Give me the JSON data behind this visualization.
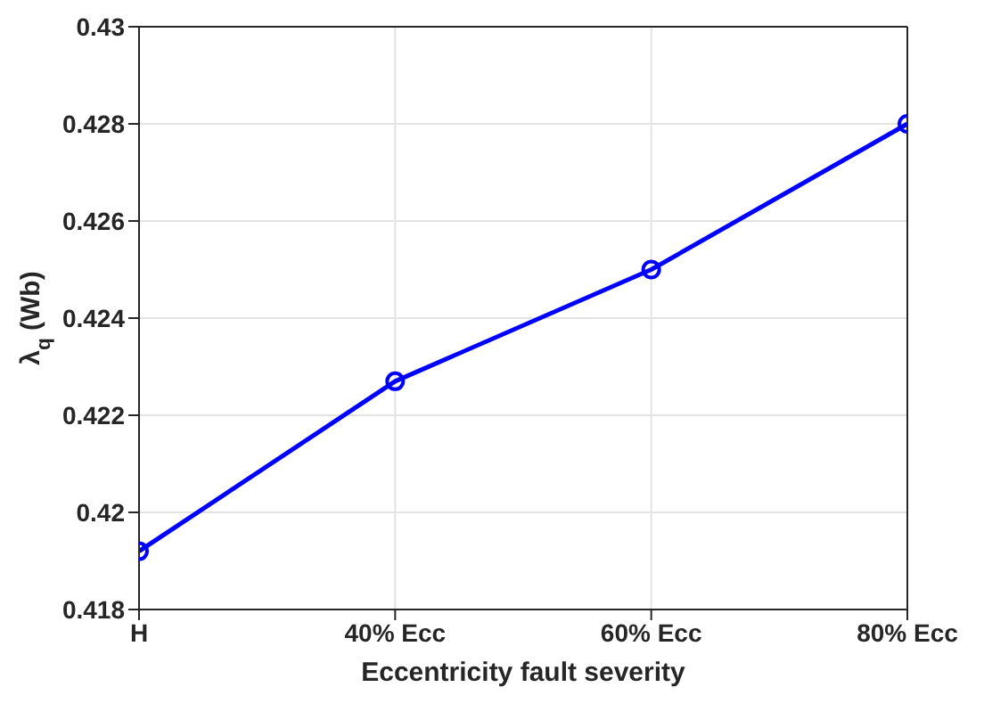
{
  "chart_data": {
    "type": "line",
    "xlabel": "Eccentricity fault severity",
    "ylabel": "λ$_{q}$ (Wb)",
    "categories": [
      "H",
      "40% Ecc",
      "60% Ecc",
      "80% Ecc"
    ],
    "series": [
      {
        "color": "#0000ff",
        "values": [
          0.4192,
          0.4227,
          0.425,
          0.428
        ]
      }
    ],
    "ylim": [
      0.418,
      0.43
    ],
    "yticks": [
      0.418,
      0.42,
      0.422,
      0.424,
      0.426,
      0.428,
      0.43
    ],
    "grid": true,
    "marker": "circle",
    "line_style": "solid",
    "legend": false
  }
}
